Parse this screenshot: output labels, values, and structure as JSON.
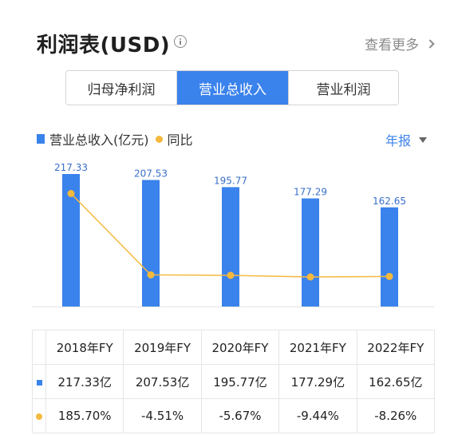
{
  "header": {
    "title": "利润表(USD)",
    "more_label": "查看更多",
    "info_icon": "info-circle-icon",
    "more_icon": "chevron-right-icon"
  },
  "tabs": [
    {
      "label": "归母净利润",
      "active": false
    },
    {
      "label": "营业总收入",
      "active": true
    },
    {
      "label": "营业利润",
      "active": false
    }
  ],
  "legend": {
    "bar_series": "营业总收入(亿元)",
    "line_series": "同比"
  },
  "period": {
    "label": "年报",
    "icon": "caret-down-icon"
  },
  "colors": {
    "accent": "#3a82ec",
    "line": "#f5b93d",
    "positive": "#d43c3c",
    "negative": "#2e9a4a"
  },
  "chart_data": {
    "type": "bar",
    "categories": [
      "2018年FY",
      "2019年FY",
      "2020年FY",
      "2021年FY",
      "2022年FY"
    ],
    "series": [
      {
        "name": "营业总收入(亿元)",
        "type": "bar",
        "values": [
          217.33,
          207.53,
          195.77,
          177.29,
          162.65
        ],
        "labels": [
          "217.33",
          "207.53",
          "195.77",
          "177.29",
          "162.65"
        ]
      },
      {
        "name": "同比",
        "type": "line",
        "values": [
          185.7,
          -4.51,
          -5.67,
          -9.44,
          -8.26
        ]
      }
    ]
  },
  "table": {
    "header": [
      "2018年FY",
      "2019年FY",
      "2020年FY",
      "2021年FY",
      "2022年FY"
    ],
    "revenue_row": [
      "217.33亿",
      "207.53亿",
      "195.77亿",
      "177.29亿",
      "162.65亿"
    ],
    "yoy_row": [
      "185.70%",
      "-4.51%",
      "-5.67%",
      "-9.44%",
      "-8.26%"
    ]
  }
}
